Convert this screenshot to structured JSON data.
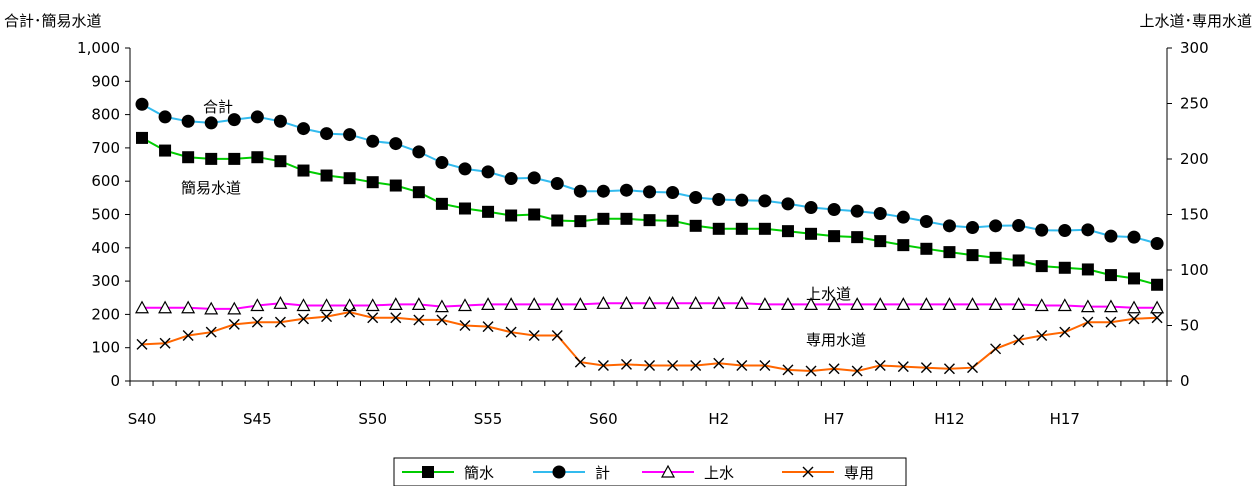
{
  "chart_data": {
    "type": "line",
    "left_axis_title": "合計･簡易水道",
    "right_axis_title": "上水道･専用水道",
    "left_ylim": [
      0,
      1000
    ],
    "left_yticks": [
      "0",
      "100",
      "200",
      "300",
      "400",
      "500",
      "600",
      "700",
      "800",
      "900",
      "1,000"
    ],
    "right_ylim": [
      0,
      300
    ],
    "right_yticks": [
      "0",
      "50",
      "100",
      "150",
      "200",
      "250",
      "300"
    ],
    "x_tick_labels": [
      "S40",
      "S45",
      "S50",
      "S55",
      "S60",
      "H2",
      "H7",
      "H12",
      "H17"
    ],
    "x_tick_positions": [
      0,
      5,
      10,
      15,
      20,
      25,
      30,
      35,
      40
    ],
    "grid": false,
    "legend_position": "bottom",
    "annotations": {
      "total": "合計",
      "simple": "簡易水道",
      "upper": "上水道",
      "private": "専用水道"
    },
    "series": [
      {
        "name": "簡水",
        "axis": "left",
        "color": "#00cc00",
        "marker": "square",
        "values": [
          730,
          692,
          672,
          667,
          667,
          672,
          660,
          632,
          617,
          609,
          597,
          587,
          567,
          532,
          518,
          508,
          497,
          500,
          482,
          480,
          487,
          487,
          483,
          481,
          466,
          457,
          457,
          457,
          450,
          442,
          435,
          432,
          420,
          408,
          397,
          387,
          378,
          370,
          362,
          345,
          340,
          335,
          318,
          308,
          289
        ]
      },
      {
        "name": "計",
        "axis": "left",
        "color": "#33bbee",
        "marker": "circle",
        "values": [
          831,
          793,
          780,
          775,
          785,
          793,
          780,
          758,
          743,
          740,
          720,
          713,
          688,
          656,
          637,
          628,
          608,
          610,
          593,
          570,
          570,
          573,
          568,
          566,
          551,
          545,
          543,
          541,
          532,
          521,
          515,
          510,
          503,
          492,
          479,
          466,
          461,
          466,
          467,
          453,
          452,
          454,
          435,
          432,
          413
        ]
      },
      {
        "name": "上水",
        "axis": "right",
        "color": "#ff00ff",
        "marker": "triangle",
        "values": [
          66,
          66,
          66,
          65,
          65,
          68,
          70,
          68,
          68,
          68,
          68,
          69,
          69,
          67,
          68,
          69,
          69,
          69,
          69,
          69,
          70,
          70,
          70,
          70,
          70,
          70,
          70,
          69,
          69,
          69,
          69,
          69,
          69,
          69,
          69,
          69,
          69,
          69,
          69,
          68,
          68,
          67,
          67,
          66,
          66
        ]
      },
      {
        "name": "専用",
        "axis": "right",
        "color": "#ff6600",
        "marker": "x",
        "values": [
          33,
          34,
          41,
          44,
          51,
          53,
          53,
          56,
          58,
          62,
          57,
          57,
          55,
          55,
          50,
          49,
          44,
          41,
          41,
          17,
          14,
          15,
          14,
          14,
          14,
          16,
          14,
          14,
          10,
          9,
          11,
          9,
          14,
          13,
          12,
          11,
          12,
          29,
          37,
          41,
          44,
          53,
          53,
          56,
          57
        ]
      }
    ]
  }
}
